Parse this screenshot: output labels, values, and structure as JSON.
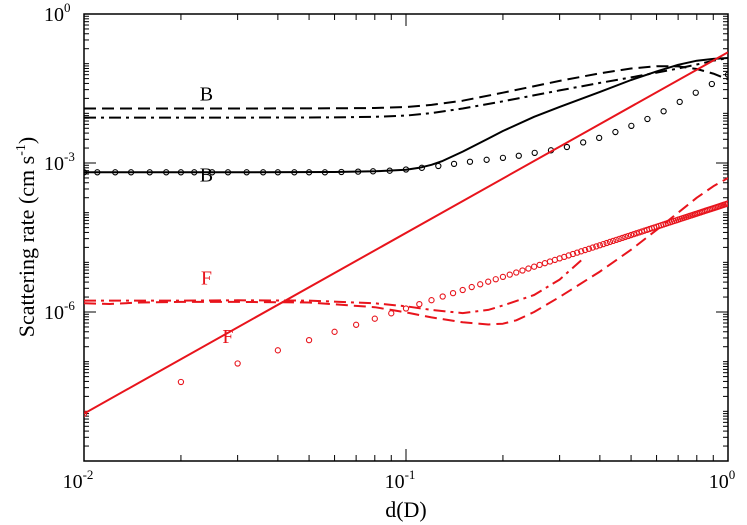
{
  "chart_data": {
    "type": "line",
    "xscale": "log",
    "yscale": "log",
    "xlim": [
      0.01,
      1
    ],
    "ylim": [
      1e-09,
      1
    ],
    "xlabel": "d(D)",
    "ylabel": {
      "base": "Scattering rate (cm s",
      "exp": "-1",
      "close": ")"
    },
    "xticks": [
      {
        "value": 0.01,
        "base": "10",
        "exp": "-2"
      },
      {
        "value": 0.1,
        "base": "10",
        "exp": "-1"
      },
      {
        "value": 1,
        "base": "10",
        "exp": "0"
      }
    ],
    "yticks": [
      {
        "value": 1e-06,
        "base": "10",
        "exp": "-6"
      },
      {
        "value": 0.001,
        "base": "10",
        "exp": "-3"
      },
      {
        "value": 1,
        "base": "10",
        "exp": "0"
      }
    ],
    "colors": {
      "black": "#000000",
      "red": "#e8141c"
    },
    "series": [
      {
        "id": "black-dashed",
        "color": "black",
        "style": "dashed",
        "x": [
          0.01,
          0.03,
          0.06,
          0.08,
          0.1,
          0.12,
          0.15,
          0.2,
          0.3,
          0.4,
          0.5,
          0.6,
          0.7,
          0.8,
          0.9,
          1.0
        ],
        "y": [
          0.0125,
          0.0125,
          0.0126,
          0.0128,
          0.0134,
          0.0148,
          0.018,
          0.026,
          0.045,
          0.064,
          0.08,
          0.089,
          0.088,
          0.078,
          0.063,
          0.048
        ]
      },
      {
        "id": "black-dashdot",
        "color": "black",
        "style": "dashdot",
        "x": [
          0.01,
          0.03,
          0.06,
          0.08,
          0.1,
          0.12,
          0.15,
          0.2,
          0.3,
          0.4,
          0.5,
          0.6,
          0.7,
          0.8,
          0.9,
          1.0
        ],
        "y": [
          0.0082,
          0.0082,
          0.0083,
          0.0085,
          0.009,
          0.0101,
          0.0125,
          0.0175,
          0.029,
          0.041,
          0.053,
          0.066,
          0.08,
          0.096,
          0.115,
          0.13
        ]
      },
      {
        "id": "black-solid",
        "color": "black",
        "style": "solid",
        "x": [
          0.01,
          0.03,
          0.06,
          0.08,
          0.1,
          0.11,
          0.12,
          0.13,
          0.15,
          0.18,
          0.2,
          0.25,
          0.3,
          0.4,
          0.5,
          0.6,
          0.7,
          0.8,
          0.9,
          1.0
        ],
        "y": [
          0.00065,
          0.00065,
          0.00066,
          0.00068,
          0.00073,
          0.0008,
          0.00092,
          0.0011,
          0.0017,
          0.0031,
          0.0044,
          0.0085,
          0.0135,
          0.027,
          0.047,
          0.07,
          0.095,
          0.115,
          0.125,
          0.13
        ]
      },
      {
        "id": "black-circles",
        "color": "black",
        "style": "markers",
        "x": [
          0.01,
          0.011,
          0.0125,
          0.014,
          0.016,
          0.018,
          0.02,
          0.022,
          0.025,
          0.028,
          0.032,
          0.036,
          0.04,
          0.045,
          0.05,
          0.056,
          0.063,
          0.071,
          0.079,
          0.089,
          0.1,
          0.112,
          0.126,
          0.141,
          0.158,
          0.178,
          0.2,
          0.224,
          0.251,
          0.282,
          0.316,
          0.355,
          0.398,
          0.447,
          0.501,
          0.562,
          0.631,
          0.708,
          0.794,
          0.891,
          1.0
        ],
        "y": [
          0.00065,
          0.00065,
          0.00065,
          0.00065,
          0.00065,
          0.00065,
          0.00065,
          0.00065,
          0.00065,
          0.00065,
          0.00065,
          0.00065,
          0.00065,
          0.00065,
          0.00065,
          0.00065,
          0.00066,
          0.00067,
          0.00068,
          0.0007,
          0.00074,
          0.0008,
          0.00087,
          0.00096,
          0.00106,
          0.00116,
          0.00127,
          0.0014,
          0.0016,
          0.0018,
          0.0021,
          0.0026,
          0.0032,
          0.0042,
          0.0056,
          0.0077,
          0.011,
          0.017,
          0.026,
          0.039,
          0.06
        ]
      },
      {
        "id": "red-solid",
        "color": "red",
        "style": "solid",
        "x": [
          0.01,
          1.0
        ],
        "y": [
          9e-09,
          0.17
        ]
      },
      {
        "id": "red-circles",
        "color": "red",
        "style": "markers",
        "x": [
          0.01,
          0.02,
          0.03,
          0.04,
          0.05,
          0.06,
          0.07,
          0.08,
          0.09,
          0.1,
          0.11,
          0.12,
          0.13,
          0.14,
          0.15,
          0.16,
          0.17,
          0.18,
          0.19,
          0.2,
          0.21,
          0.22,
          0.23,
          0.24,
          0.25,
          0.26,
          0.27,
          0.28,
          0.29,
          0.3,
          0.31,
          0.32,
          0.33,
          0.34,
          0.35,
          0.36,
          0.37,
          0.38,
          0.39,
          0.4,
          0.41,
          0.42,
          0.43,
          0.44,
          0.45,
          0.46,
          0.47,
          0.48,
          0.49,
          0.5,
          0.51,
          0.52,
          0.53,
          0.54,
          0.55,
          0.56,
          0.57,
          0.58,
          0.59,
          0.6,
          0.61,
          0.62,
          0.63,
          0.64,
          0.65,
          0.66,
          0.67,
          0.68,
          0.69,
          0.7,
          0.71,
          0.72,
          0.73,
          0.74,
          0.75,
          0.76,
          0.77,
          0.78,
          0.79,
          0.8,
          0.81,
          0.82,
          0.83,
          0.84,
          0.85,
          0.86,
          0.87,
          0.88,
          0.89,
          0.9,
          0.91,
          0.92,
          0.93,
          0.94,
          0.95,
          0.96,
          0.97,
          0.98,
          0.99,
          1.0
        ],
        "yfit": {
          "a": 9e-09,
          "b": 2.116
        }
      },
      {
        "id": "red-dashed",
        "color": "red",
        "style": "dashed",
        "x": [
          0.01,
          0.012,
          0.015,
          0.02,
          0.03,
          0.05,
          0.08,
          0.1,
          0.12,
          0.15,
          0.18,
          0.2,
          0.22,
          0.25,
          0.3,
          0.4,
          0.5,
          0.6,
          0.7,
          0.8,
          0.9,
          1.0
        ],
        "y": [
          1.5e-06,
          1.45e-06,
          1.55e-06,
          1.6e-06,
          1.6e-06,
          1.55e-06,
          1.25e-06,
          9.8e-07,
          7.8e-07,
          6.2e-07,
          5.6e-07,
          5.8e-07,
          6.8e-07,
          1e-06,
          2e-06,
          6.5e-06,
          1.8e-05,
          4.5e-05,
          0.0001,
          0.0002,
          0.00034,
          0.0005
        ]
      },
      {
        "id": "red-dashdot",
        "color": "red",
        "style": "dashdot",
        "x": [
          0.01,
          0.015,
          0.02,
          0.03,
          0.05,
          0.08,
          0.1,
          0.12,
          0.15,
          0.18,
          0.2,
          0.25,
          0.3,
          0.35
        ],
        "y": [
          1.7e-06,
          1.7e-06,
          1.7e-06,
          1.72e-06,
          1.7e-06,
          1.5e-06,
          1.3e-06,
          1.1e-06,
          9.5e-07,
          1.1e-06,
          1.35e-06,
          2.2e-06,
          4.5e-06,
          1.1e-05
        ]
      }
    ],
    "annotations": [
      {
        "text": "B",
        "color": "black",
        "x": 0.024,
        "y": 0.018
      },
      {
        "text": "B",
        "color": "black",
        "x": 0.024,
        "y": 0.00042
      },
      {
        "text": "F",
        "color": "red",
        "x": 0.024,
        "y": 3.6e-06
      },
      {
        "text": "F",
        "color": "red",
        "x": 0.028,
        "y": 2.4e-07
      }
    ]
  }
}
